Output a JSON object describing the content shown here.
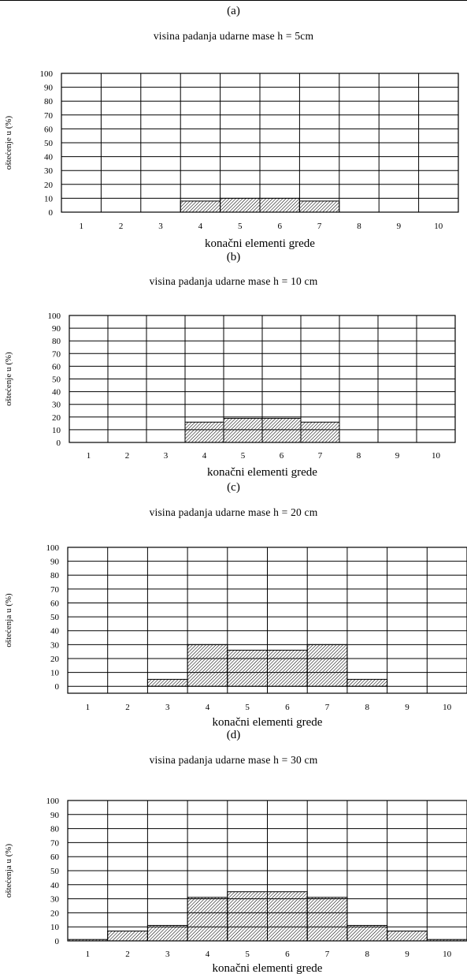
{
  "figure": {
    "panels": [
      {
        "label": "(a)",
        "title": "visina padanja udarne mase h = 5cm"
      },
      {
        "label": "(b)",
        "title": "visina padanja udarne mase h = 10 cm"
      },
      {
        "label": "(c)",
        "title": "visina padanja udarne mase h = 20 cm"
      },
      {
        "label": "(d)",
        "title": "visina padanja udarne mase h = 30 cm"
      }
    ]
  },
  "chart_data": [
    {
      "type": "bar",
      "title": "visina padanja udarne mase h = 5cm",
      "xlabel": "konačni elementi grede",
      "ylabel": "oštećenje u (%)",
      "categories": [
        "1",
        "2",
        "3",
        "4",
        "5",
        "6",
        "7",
        "8",
        "9",
        "10"
      ],
      "values": [
        0,
        0,
        0,
        8,
        10,
        10,
        8,
        0,
        0,
        0
      ],
      "ylim": [
        0,
        100
      ],
      "yticks": [
        0,
        10,
        20,
        30,
        40,
        50,
        60,
        70,
        80,
        90,
        100
      ],
      "grid": true,
      "bar_fill": "hatched"
    },
    {
      "type": "bar",
      "title": "visina padanja udarne mase h = 10 cm",
      "xlabel": "konačni elementi grede",
      "ylabel": "oštećenje u (%)",
      "categories": [
        "1",
        "2",
        "3",
        "4",
        "5",
        "6",
        "7",
        "8",
        "9",
        "10"
      ],
      "values": [
        0,
        0,
        0,
        16,
        19,
        19,
        16,
        0,
        0,
        0
      ],
      "ylim": [
        0,
        100
      ],
      "yticks": [
        0,
        10,
        20,
        30,
        40,
        50,
        60,
        70,
        80,
        90,
        100
      ],
      "grid": true,
      "bar_fill": "hatched"
    },
    {
      "type": "bar",
      "title": "visina padanja udarne mase h = 20 cm",
      "xlabel": "konačni elementi grede",
      "ylabel": "oštećenja u (%)",
      "categories": [
        "1",
        "2",
        "3",
        "4",
        "5",
        "6",
        "7",
        "8",
        "9",
        "10"
      ],
      "values": [
        0,
        0,
        5,
        30,
        26,
        26,
        30,
        5,
        0,
        0
      ],
      "ylim": [
        -5,
        100
      ],
      "yticks": [
        0,
        10,
        20,
        30,
        40,
        50,
        60,
        70,
        80,
        90,
        100
      ],
      "grid": true,
      "bar_fill": "hatched"
    },
    {
      "type": "bar",
      "title": "visina padanja udarne mase h = 30 cm",
      "xlabel": "konačni elementi grede",
      "ylabel": "oštećenja u (%)",
      "categories": [
        "1",
        "2",
        "3",
        "4",
        "5",
        "6",
        "7",
        "8",
        "9",
        "10"
      ],
      "values": [
        1,
        7,
        11,
        31,
        35,
        35,
        31,
        11,
        7,
        1
      ],
      "ylim": [
        0,
        100
      ],
      "yticks": [
        0,
        10,
        20,
        30,
        40,
        50,
        60,
        70,
        80,
        90,
        100
      ],
      "grid": true,
      "bar_fill": "hatched"
    }
  ]
}
